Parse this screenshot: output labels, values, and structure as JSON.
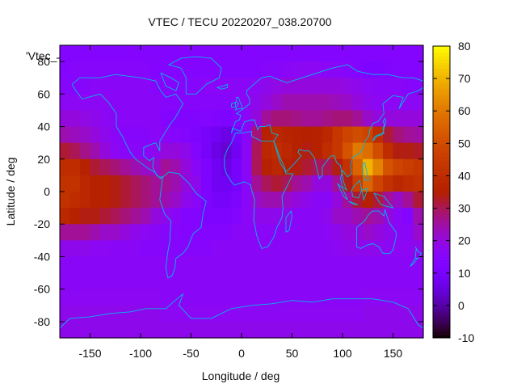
{
  "chart_data": {
    "type": "heatmap",
    "title": "VTEC / TECU 20220207_038.20700",
    "xlabel": "Longitude / deg",
    "ylabel": "Latitude / deg",
    "legend_entry": "'Vtec_",
    "xlim": [
      -180,
      180
    ],
    "ylim": [
      -90,
      90
    ],
    "xticks": [
      -150,
      -100,
      -50,
      0,
      50,
      100,
      150
    ],
    "yticks": [
      -80,
      -60,
      -40,
      -20,
      0,
      20,
      40,
      60,
      80
    ],
    "colorbar": {
      "min": -10,
      "max": 80,
      "ticks": [
        -10,
        0,
        10,
        20,
        30,
        40,
        50,
        60,
        70,
        80
      ]
    },
    "grid": {
      "lon_step": 10,
      "lat_step": 10,
      "note": "Estimated VTEC values (TECU) per 10x10 deg cell; rows from lat 90 (top) to -90 (bottom), columns from lon -180 to 180",
      "values": [
        [
          14,
          14,
          14,
          14,
          14,
          14,
          14,
          14,
          14,
          14,
          14,
          14,
          14,
          14,
          14,
          14,
          14,
          14,
          14,
          14,
          14,
          14,
          14,
          14,
          14,
          14,
          14,
          14,
          14,
          14,
          14,
          14,
          14,
          14,
          14,
          14
        ],
        [
          14,
          15,
          15,
          15,
          15,
          15,
          15,
          15,
          15,
          14,
          14,
          14,
          14,
          14,
          14,
          14,
          14,
          14,
          14,
          14,
          15,
          15,
          16,
          17,
          17,
          17,
          16,
          16,
          15,
          14,
          12,
          12,
          13,
          14,
          14,
          14
        ],
        [
          15,
          15,
          15,
          16,
          16,
          16,
          16,
          16,
          16,
          15,
          15,
          15,
          15,
          15,
          16,
          16,
          16,
          16,
          16,
          17,
          18,
          19,
          20,
          20,
          20,
          20,
          20,
          20,
          19,
          18,
          17,
          16,
          16,
          16,
          15,
          15
        ],
        [
          17,
          17,
          17,
          17,
          17,
          16,
          16,
          16,
          16,
          16,
          15,
          15,
          15,
          15,
          15,
          15,
          15,
          16,
          17,
          18,
          20,
          22,
          24,
          24,
          24,
          24,
          24,
          23,
          22,
          20,
          18,
          17,
          17,
          17,
          17,
          17
        ],
        [
          20,
          20,
          19,
          18,
          17,
          16,
          16,
          16,
          16,
          16,
          14,
          13,
          13,
          13,
          14,
          13,
          12,
          14,
          16,
          20,
          26,
          28,
          28,
          27,
          26,
          26,
          27,
          28,
          28,
          26,
          22,
          20,
          20,
          20,
          20,
          20
        ],
        [
          24,
          23,
          22,
          20,
          18,
          16,
          15,
          15,
          15,
          16,
          16,
          15,
          14,
          12,
          10,
          8,
          6,
          10,
          16,
          28,
          36,
          38,
          37,
          36,
          35,
          36,
          38,
          44,
          48,
          50,
          48,
          40,
          32,
          28,
          26,
          25
        ],
        [
          32,
          30,
          27,
          24,
          20,
          17,
          16,
          16,
          16,
          18,
          20,
          20,
          18,
          14,
          10,
          6,
          4,
          8,
          16,
          30,
          38,
          40,
          38,
          36,
          34,
          36,
          40,
          44,
          52,
          60,
          58,
          50,
          40,
          34,
          34,
          33
        ],
        [
          40,
          40,
          36,
          32,
          30,
          28,
          26,
          24,
          22,
          22,
          26,
          24,
          20,
          16,
          12,
          8,
          6,
          10,
          16,
          30,
          36,
          38,
          36,
          34,
          32,
          30,
          30,
          34,
          42,
          56,
          70,
          62,
          52,
          48,
          46,
          44
        ],
        [
          42,
          42,
          38,
          36,
          36,
          34,
          32,
          30,
          28,
          26,
          26,
          24,
          20,
          18,
          12,
          8,
          8,
          10,
          16,
          26,
          30,
          32,
          30,
          26,
          24,
          20,
          20,
          26,
          34,
          46,
          56,
          48,
          42,
          38,
          40,
          42
        ],
        [
          42,
          40,
          38,
          36,
          36,
          34,
          32,
          30,
          28,
          26,
          24,
          22,
          18,
          16,
          12,
          10,
          10,
          12,
          16,
          22,
          24,
          24,
          22,
          20,
          18,
          16,
          16,
          20,
          26,
          32,
          36,
          32,
          26,
          22,
          26,
          32
        ],
        [
          38,
          36,
          34,
          34,
          32,
          30,
          28,
          26,
          24,
          20,
          18,
          16,
          14,
          14,
          12,
          12,
          12,
          14,
          16,
          18,
          18,
          18,
          18,
          16,
          16,
          16,
          18,
          22,
          22,
          24,
          26,
          24,
          20,
          16,
          14,
          24
        ],
        [
          26,
          26,
          26,
          24,
          22,
          22,
          20,
          18,
          17,
          16,
          15,
          15,
          14,
          14,
          14,
          14,
          14,
          16,
          16,
          16,
          16,
          16,
          16,
          16,
          16,
          16,
          17,
          18,
          20,
          20,
          22,
          20,
          18,
          16,
          16,
          22
        ],
        [
          18,
          18,
          18,
          17,
          17,
          16,
          16,
          16,
          15,
          15,
          15,
          15,
          15,
          15,
          15,
          16,
          16,
          16,
          16,
          16,
          16,
          16,
          16,
          16,
          16,
          16,
          16,
          17,
          18,
          18,
          18,
          18,
          17,
          17,
          17,
          18
        ],
        [
          16,
          16,
          16,
          16,
          16,
          16,
          16,
          16,
          16,
          16,
          16,
          16,
          16,
          16,
          16,
          16,
          16,
          16,
          16,
          16,
          16,
          16,
          16,
          16,
          16,
          16,
          16,
          16,
          16,
          16,
          16,
          16,
          16,
          16,
          16,
          16
        ],
        [
          16,
          16,
          16,
          16,
          16,
          16,
          16,
          16,
          16,
          16,
          16,
          16,
          16,
          16,
          16,
          16,
          16,
          16,
          16,
          16,
          16,
          16,
          16,
          16,
          16,
          16,
          16,
          16,
          16,
          16,
          16,
          16,
          16,
          16,
          16,
          16
        ],
        [
          17,
          17,
          17,
          17,
          17,
          17,
          17,
          17,
          17,
          17,
          16,
          16,
          16,
          16,
          16,
          16,
          16,
          16,
          16,
          16,
          16,
          16,
          16,
          16,
          16,
          16,
          16,
          16,
          16,
          16,
          17,
          17,
          17,
          17,
          17,
          17
        ],
        [
          18,
          18,
          18,
          18,
          18,
          18,
          18,
          18,
          18,
          18,
          17,
          17,
          17,
          17,
          17,
          17,
          17,
          17,
          17,
          17,
          17,
          17,
          17,
          17,
          17,
          17,
          17,
          17,
          17,
          17,
          18,
          18,
          18,
          18,
          18,
          18
        ],
        [
          18,
          18,
          18,
          18,
          18,
          18,
          18,
          18,
          18,
          18,
          18,
          18,
          18,
          18,
          18,
          18,
          18,
          18,
          18,
          18,
          18,
          18,
          18,
          18,
          18,
          18,
          18,
          18,
          18,
          18,
          18,
          18,
          18,
          18,
          18,
          18
        ]
      ]
    }
  }
}
